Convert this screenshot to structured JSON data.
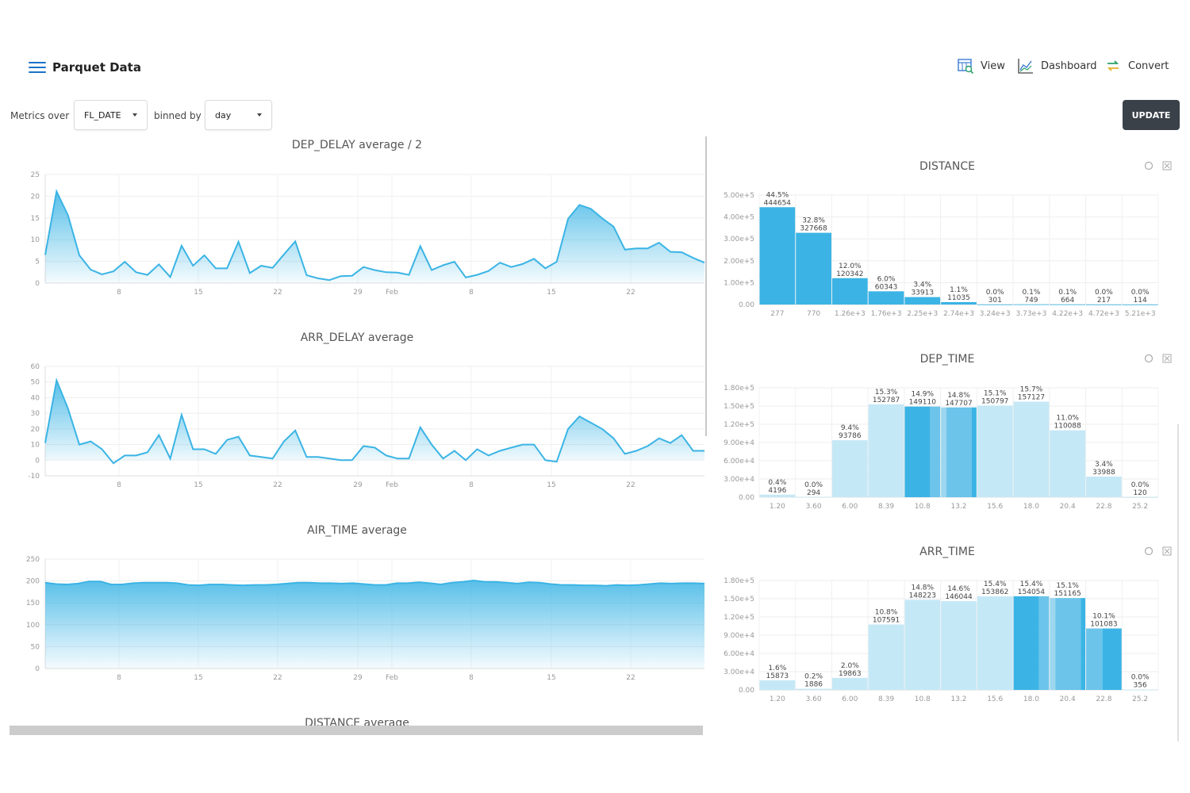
{
  "header": {
    "title": "Parquet Data",
    "nav": [
      {
        "label": "View",
        "icon": "view-table-icon"
      },
      {
        "label": "Dashboard",
        "icon": "dashboard-chart-icon"
      },
      {
        "label": "Convert",
        "icon": "convert-arrows-icon"
      }
    ]
  },
  "controls": {
    "metrics_label": "Metrics over",
    "metrics_value": "FL_DATE",
    "binned_label": "binned by",
    "binned_value": "day",
    "update_label": "UPDATE"
  },
  "colors": {
    "accent": "#3bb4e5",
    "bar_dark": "#3bb4e5",
    "bar_light": "#c5e8f6",
    "bar_mid": "#6cc4ea",
    "button": "#3a4149"
  },
  "line_x_ticks": [
    "8",
    "15",
    "22",
    "29",
    "Feb",
    "8",
    "15",
    "22"
  ],
  "chart_data": [
    {
      "type": "area",
      "title": "DEP_DELAY average / 2",
      "ylim": [
        0,
        25
      ],
      "yticks": [
        0,
        5,
        10,
        15,
        20,
        25
      ],
      "x_ticks": [
        "8",
        "15",
        "22",
        "29",
        "Feb",
        "8",
        "15",
        "22"
      ],
      "values": [
        6.5,
        21.1,
        15.6,
        6.4,
        3.1,
        2.0,
        2.7,
        4.9,
        2.5,
        1.9,
        4.3,
        1.4,
        8.6,
        4.0,
        6.4,
        3.4,
        3.4,
        9.5,
        2.3,
        4.0,
        3.5,
        6.6,
        9.6,
        1.8,
        1.1,
        0.7,
        1.6,
        1.7,
        3.7,
        3.0,
        2.5,
        2.4,
        1.9,
        8.5,
        3.0,
        4.1,
        4.9,
        1.3,
        1.9,
        2.8,
        4.7,
        3.7,
        4.4,
        5.6,
        3.4,
        4.9,
        14.8,
        18.0,
        17.1,
        14.9,
        13.0,
        7.7,
        8.0,
        8.0,
        9.3,
        7.2,
        7.1,
        5.8,
        4.7
      ]
    },
    {
      "type": "area",
      "title": "ARR_DELAY average",
      "ylim": [
        -10,
        60
      ],
      "yticks": [
        -10,
        0,
        10,
        20,
        30,
        40,
        50,
        60
      ],
      "x_ticks": [
        "8",
        "15",
        "22",
        "29",
        "Feb",
        "8",
        "15",
        "22"
      ],
      "values": [
        11,
        51,
        33,
        10,
        12,
        7,
        -2,
        3,
        3,
        5,
        16,
        1,
        29,
        7,
        7,
        4,
        13,
        15,
        3,
        2,
        1,
        12,
        19,
        2,
        2,
        1,
        0,
        0,
        9,
        8,
        3,
        1,
        1,
        21,
        10,
        1,
        6,
        0,
        7,
        3,
        6,
        8,
        10,
        10,
        0,
        -1,
        20,
        28,
        24,
        20,
        14,
        4,
        6,
        9,
        14,
        11,
        16,
        6,
        6
      ]
    },
    {
      "type": "area",
      "title": "AIR_TIME average",
      "ylim": [
        0,
        250
      ],
      "yticks": [
        0,
        50,
        100,
        150,
        200,
        250
      ],
      "x_ticks": [
        "8",
        "15",
        "22",
        "29",
        "Feb",
        "8",
        "15",
        "22"
      ],
      "values": [
        196,
        193,
        192,
        194,
        199,
        199,
        192,
        192,
        195,
        196,
        196,
        196,
        195,
        191,
        190,
        192,
        192,
        191,
        190,
        191,
        191,
        192,
        194,
        196,
        196,
        195,
        195,
        194,
        195,
        193,
        191,
        191,
        195,
        195,
        197,
        195,
        192,
        196,
        198,
        201,
        198,
        198,
        196,
        194,
        197,
        196,
        193,
        191,
        191,
        190,
        190,
        189,
        191,
        190,
        191,
        193,
        195,
        194,
        195,
        195,
        194
      ]
    },
    {
      "type": "bar",
      "title": "DISTANCE",
      "ylim": [
        0,
        500000
      ],
      "yticks": [
        "0.00",
        "1.00e+5",
        "2.00e+5",
        "3.00e+5",
        "4.00e+5",
        "5.00e+5"
      ],
      "categories": [
        "277",
        "770",
        "1.26e+3",
        "1.76e+3",
        "2.25e+3",
        "2.74e+3",
        "3.24e+3",
        "3.73e+3",
        "4.22e+3",
        "4.72e+3",
        "5.21e+3"
      ],
      "values": [
        444654,
        327668,
        120342,
        60343,
        33913,
        11035,
        301,
        749,
        664,
        217,
        114
      ],
      "pct": [
        "44.5%",
        "32.8%",
        "12.0%",
        "6.0%",
        "3.4%",
        "1.1%",
        "0.0%",
        "0.1%",
        "0.1%",
        "0.0%",
        "0.0%"
      ],
      "labels": [
        "444654",
        "327668",
        "120342",
        "60343",
        "33913",
        "11035",
        "301",
        "749",
        "664",
        "217",
        "114"
      ],
      "shade": [
        "dark",
        "dark",
        "dark",
        "dark",
        "dark",
        "dark",
        "dark",
        "dark",
        "dark",
        "dark",
        "dark"
      ]
    },
    {
      "type": "bar",
      "title": "DEP_TIME",
      "ylim": [
        0,
        180000
      ],
      "yticks": [
        "0.00",
        "3.00e+4",
        "6.00e+4",
        "9.00e+4",
        "1.20e+5",
        "1.50e+5",
        "1.80e+5"
      ],
      "categories": [
        "1.20",
        "3.60",
        "6.00",
        "8.39",
        "10.8",
        "13.2",
        "15.6",
        "18.0",
        "20.4",
        "22.8",
        "25.2"
      ],
      "values": [
        4196,
        294,
        93786,
        152787,
        149110,
        147707,
        150797,
        157127,
        110088,
        33988,
        120
      ],
      "pct": [
        "0.4%",
        "0.0%",
        "9.4%",
        "15.3%",
        "14.9%",
        "14.8%",
        "15.1%",
        "15.7%",
        "11.0%",
        "3.4%",
        "0.0%"
      ],
      "labels": [
        "4196",
        "294",
        "93786",
        "152787",
        "149110",
        "147707",
        "150797",
        "157127",
        "110088",
        "33988",
        "120"
      ],
      "shade": [
        "light",
        "light",
        "light",
        "light",
        "split-dark",
        "split-mid",
        "light",
        "light",
        "light",
        "light",
        "light"
      ]
    },
    {
      "type": "bar",
      "title": "ARR_TIME",
      "ylim": [
        0,
        180000
      ],
      "yticks": [
        "0.00",
        "3.00e+4",
        "6.00e+4",
        "9.00e+4",
        "1.20e+5",
        "1.50e+5",
        "1.80e+5"
      ],
      "categories": [
        "1.20",
        "3.60",
        "6.00",
        "8.39",
        "10.8",
        "13.2",
        "15.6",
        "18.0",
        "20.4",
        "22.8",
        "25.2"
      ],
      "values": [
        15873,
        1886,
        19863,
        107591,
        148223,
        146044,
        153862,
        154054,
        151165,
        101083,
        356
      ],
      "pct": [
        "1.6%",
        "0.2%",
        "2.0%",
        "10.8%",
        "14.8%",
        "14.6%",
        "15.4%",
        "15.4%",
        "15.1%",
        "10.1%",
        "0.0%"
      ],
      "labels": [
        "15873",
        "1886",
        "19863",
        "107591",
        "148223",
        "146044",
        "153862",
        "154054",
        "151165",
        "101083",
        "356"
      ],
      "shade": [
        "light",
        "light",
        "light",
        "light",
        "light",
        "light",
        "light",
        "split-dark",
        "split-mid",
        "split-end",
        "light"
      ]
    }
  ],
  "partial_chart_title": "DISTANCE average"
}
